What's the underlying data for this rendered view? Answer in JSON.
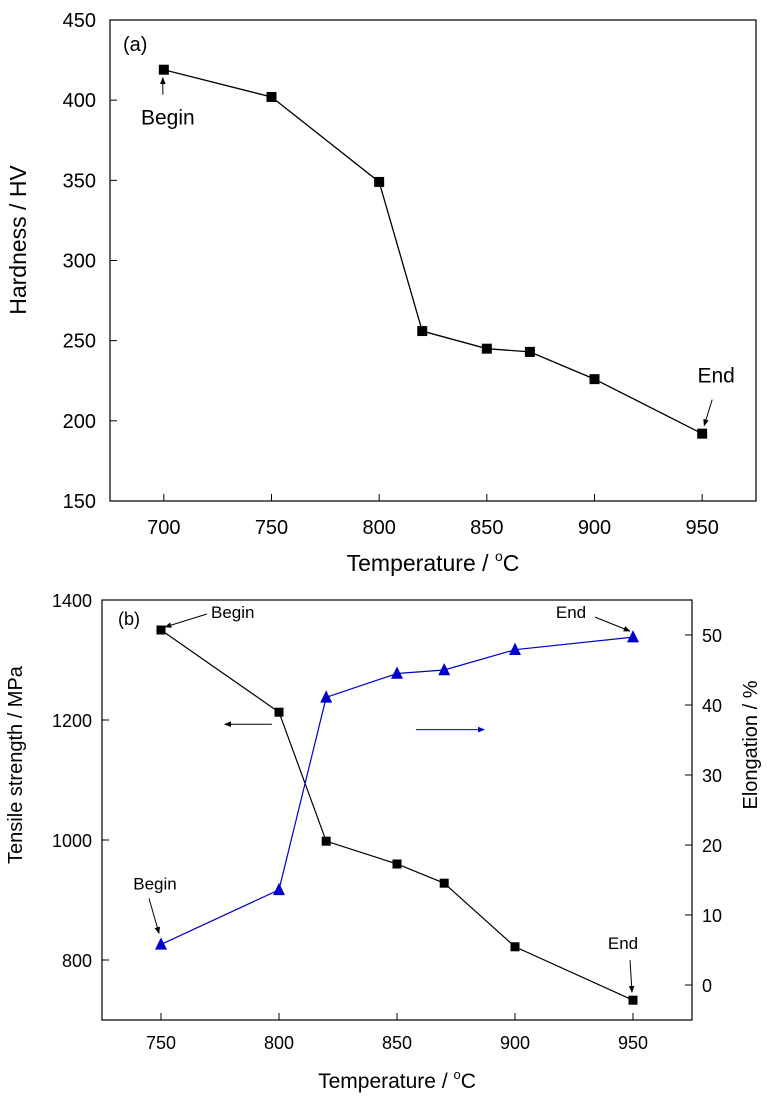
{
  "chart_data": [
    {
      "panel": "(a)",
      "type": "line",
      "xlabel": "Temperature / ",
      "xlabel_unit_sup": "o",
      "xlabel_unit": "C",
      "ylabel": "Hardness / HV",
      "xlim": [
        675,
        975
      ],
      "ylim": [
        150,
        450
      ],
      "xticks": [
        700,
        750,
        800,
        850,
        900,
        950
      ],
      "yticks": [
        150,
        200,
        250,
        300,
        350,
        400,
        450
      ],
      "series": [
        {
          "color": "#000000",
          "marker": "square",
          "x": [
            700,
            750,
            800,
            820,
            850,
            870,
            900,
            950
          ],
          "y": [
            419,
            402,
            349,
            256,
            245,
            243,
            226,
            192
          ]
        }
      ],
      "annotations": [
        {
          "text": "Begin",
          "x": 700,
          "y": 419
        },
        {
          "text": "End",
          "x": 950,
          "y": 192
        }
      ]
    },
    {
      "panel": "(b)",
      "type": "line",
      "xlabel": "Temperature / ",
      "xlabel_unit_sup": "o",
      "xlabel_unit": "C",
      "ylabel_left": "Tensile strength / MPa",
      "ylabel_right": "Elongation / %",
      "xlim": [
        725,
        975
      ],
      "ylim_left": [
        700,
        1400
      ],
      "ylim_right": [
        -5,
        55
      ],
      "xticks": [
        750,
        800,
        850,
        900,
        950
      ],
      "yticks_left": [
        800,
        1000,
        1200,
        1400
      ],
      "yticks_right": [
        0,
        10,
        20,
        30,
        40,
        50
      ],
      "series": [
        {
          "axis": "left",
          "color": "#000000",
          "marker": "square",
          "x": [
            750,
            800,
            820,
            850,
            870,
            900,
            950
          ],
          "y": [
            1350,
            1213,
            998,
            960,
            928,
            822,
            733
          ]
        },
        {
          "axis": "right",
          "color": "#0000cc",
          "marker": "triangle",
          "x": [
            750,
            800,
            820,
            850,
            870,
            900,
            950
          ],
          "y": [
            5.8,
            13.6,
            41.1,
            44.5,
            45,
            47.9,
            49.7
          ]
        }
      ],
      "annotations": [
        {
          "text": "Begin",
          "series": 0
        },
        {
          "text": "End",
          "series": 0
        },
        {
          "text": "Begin",
          "series": 1
        },
        {
          "text": "End",
          "series": 1
        }
      ]
    }
  ]
}
